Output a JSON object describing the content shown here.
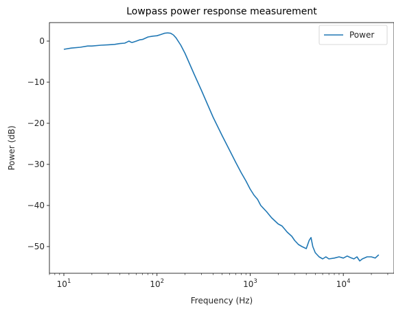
{
  "chart_data": {
    "type": "line",
    "title": "Lowpass power response measurement",
    "xlabel": "Frequency (Hz)",
    "ylabel": "Power (dB)",
    "xscale": "log",
    "xlim": [
      7,
      35000
    ],
    "ylim": [
      -56.5,
      4.5
    ],
    "grid": false,
    "legend_position": "top-right",
    "x_ticks": [
      {
        "value": 10,
        "base": "10",
        "exp": "1"
      },
      {
        "value": 100,
        "base": "10",
        "exp": "2"
      },
      {
        "value": 1000,
        "base": "10",
        "exp": "3"
      },
      {
        "value": 10000,
        "base": "10",
        "exp": "4"
      }
    ],
    "y_ticks": [
      0,
      -10,
      -20,
      -30,
      -40,
      -50
    ],
    "y_tick_labels": [
      "0",
      "−10",
      "−20",
      "−30",
      "−40",
      "−50"
    ],
    "series": [
      {
        "name": "Power",
        "color": "#1f77b4",
        "x": [
          10,
          12,
          15,
          18,
          20,
          25,
          30,
          35,
          40,
          45,
          48,
          50,
          53,
          55,
          60,
          65,
          70,
          80,
          90,
          100,
          110,
          120,
          130,
          140,
          150,
          160,
          180,
          200,
          250,
          300,
          400,
          500,
          600,
          700,
          800,
          900,
          1000,
          1100,
          1200,
          1300,
          1500,
          1700,
          2000,
          2200,
          2500,
          2800,
          3000,
          3300,
          3600,
          4000,
          4300,
          4500,
          4700,
          5000,
          5500,
          6000,
          6500,
          7000,
          8000,
          9000,
          10000,
          11000,
          12000,
          13000,
          14000,
          15000,
          16000,
          18000,
          20000,
          22000,
          24000
        ],
        "y": [
          -2.0,
          -1.7,
          -1.5,
          -1.2,
          -1.2,
          -1.0,
          -0.9,
          -0.8,
          -0.6,
          -0.5,
          -0.2,
          0.0,
          -0.3,
          -0.3,
          0.0,
          0.3,
          0.4,
          1.0,
          1.2,
          1.3,
          1.6,
          1.9,
          2.0,
          1.9,
          1.5,
          0.8,
          -1.0,
          -3.0,
          -8.0,
          -12.0,
          -18.5,
          -23.0,
          -26.5,
          -29.5,
          -32.0,
          -34.0,
          -36.0,
          -37.5,
          -38.5,
          -40.0,
          -41.5,
          -43.0,
          -44.5,
          -45.0,
          -46.5,
          -47.5,
          -48.5,
          -49.5,
          -50.0,
          -50.5,
          -48.5,
          -47.8,
          -50.0,
          -51.5,
          -52.5,
          -53.0,
          -52.5,
          -53.0,
          -52.8,
          -52.5,
          -52.8,
          -52.3,
          -52.7,
          -53.0,
          -52.5,
          -53.5,
          -53.0,
          -52.5,
          -52.5,
          -52.8,
          -52.0
        ]
      }
    ]
  }
}
